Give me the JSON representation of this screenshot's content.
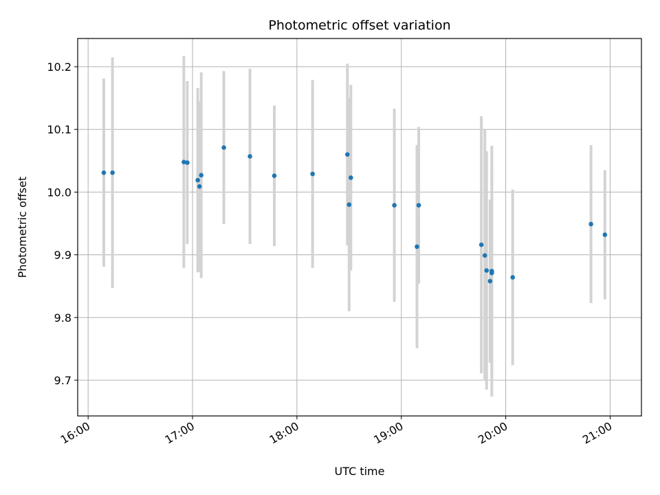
{
  "chart_data": {
    "type": "scatter",
    "title": "Photometric offset variation",
    "xlabel": "UTC time",
    "ylabel": "Photometric offset",
    "x_ticks": [
      "16:00",
      "17:00",
      "18:00",
      "19:00",
      "20:00",
      "21:00"
    ],
    "y_ticks": [
      9.7,
      9.8,
      9.9,
      10.0,
      10.1,
      10.2
    ],
    "xlim": [
      "15:54",
      "21:18"
    ],
    "ylim": [
      9.643,
      10.245
    ],
    "grid": true,
    "colors": {
      "point": "#1f77b4",
      "errorbar": "#d3d3d3",
      "grid": "#b0b0b0"
    },
    "points": [
      {
        "x": "16:09",
        "y": 10.031,
        "err": 0.15
      },
      {
        "x": "16:14",
        "y": 10.031,
        "err": 0.184
      },
      {
        "x": "16:55",
        "y": 10.048,
        "err": 0.169
      },
      {
        "x": "16:57",
        "y": 10.047,
        "err": 0.13
      },
      {
        "x": "17:03",
        "y": 10.019,
        "err": 0.147
      },
      {
        "x": "17:04",
        "y": 10.009,
        "err": 0.136
      },
      {
        "x": "17:05",
        "y": 10.027,
        "err": 0.164
      },
      {
        "x": "17:18",
        "y": 10.071,
        "err": 0.122
      },
      {
        "x": "17:33",
        "y": 10.057,
        "err": 0.14
      },
      {
        "x": "17:47",
        "y": 10.026,
        "err": 0.112
      },
      {
        "x": "18:09",
        "y": 10.029,
        "err": 0.15
      },
      {
        "x": "18:29",
        "y": 10.06,
        "err": 0.145
      },
      {
        "x": "18:30",
        "y": 9.98,
        "err": 0.17
      },
      {
        "x": "18:31",
        "y": 10.023,
        "err": 0.148
      },
      {
        "x": "18:56",
        "y": 9.979,
        "err": 0.154
      },
      {
        "x": "19:09",
        "y": 9.913,
        "err": 0.162
      },
      {
        "x": "19:10",
        "y": 9.979,
        "err": 0.125
      },
      {
        "x": "19:46",
        "y": 9.916,
        "err": 0.205
      },
      {
        "x": "19:48",
        "y": 9.899,
        "err": 0.2
      },
      {
        "x": "19:49",
        "y": 9.875,
        "err": 0.19
      },
      {
        "x": "19:51",
        "y": 9.858,
        "err": 0.13
      },
      {
        "x": "19:52",
        "y": 9.874,
        "err": 0.2
      },
      {
        "x": "19:52",
        "y": 9.871,
        "err": 0.167
      },
      {
        "x": "20:04",
        "y": 9.864,
        "err": 0.14
      },
      {
        "x": "20:49",
        "y": 9.949,
        "err": 0.126
      },
      {
        "x": "20:57",
        "y": 9.932,
        "err": 0.103
      }
    ]
  }
}
